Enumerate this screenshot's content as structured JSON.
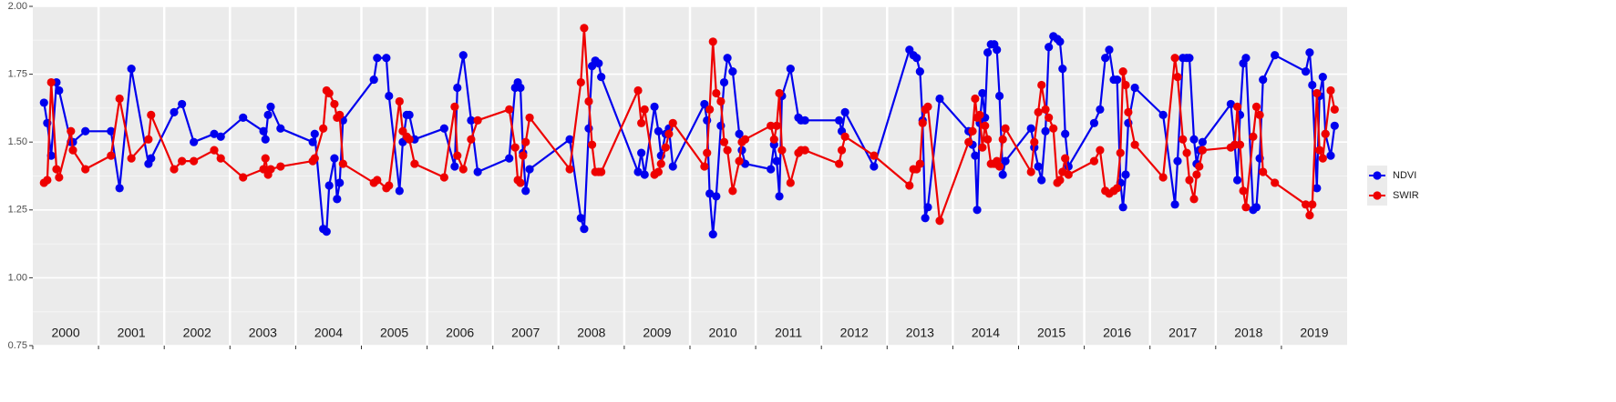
{
  "chart_data": {
    "type": "line",
    "x": [
      2000.17,
      2000.22,
      2000.28,
      2000.36,
      2000.4,
      2000.58,
      2000.61,
      2000.8,
      2001.19,
      2001.32,
      2001.5,
      2001.76,
      2001.8,
      2002.15,
      2002.27,
      2002.45,
      2002.76,
      2002.86,
      2003.2,
      2003.51,
      2003.54,
      2003.58,
      2003.62,
      2003.77,
      2004.26,
      2004.29,
      2004.42,
      2004.47,
      2004.51,
      2004.59,
      2004.63,
      2004.67,
      2004.72,
      2005.19,
      2005.24,
      2005.38,
      2005.42,
      2005.58,
      2005.63,
      2005.69,
      2005.73,
      2005.81,
      2006.26,
      2006.42,
      2006.46,
      2006.55,
      2006.67,
      2006.77,
      2007.25,
      2007.34,
      2007.38,
      2007.42,
      2007.46,
      2007.5,
      2007.56,
      2008.17,
      2008.34,
      2008.39,
      2008.46,
      2008.51,
      2008.56,
      2008.61,
      2008.65,
      2009.21,
      2009.26,
      2009.31,
      2009.46,
      2009.52,
      2009.56,
      2009.63,
      2009.68,
      2009.74,
      2010.22,
      2010.26,
      2010.3,
      2010.35,
      2010.4,
      2010.47,
      2010.52,
      2010.57,
      2010.65,
      2010.75,
      2010.79,
      2010.84,
      2011.23,
      2011.28,
      2011.32,
      2011.36,
      2011.4,
      2011.53,
      2011.65,
      2011.69,
      2011.75,
      2012.27,
      2012.31,
      2012.36,
      2012.8,
      2013.34,
      2013.4,
      2013.45,
      2013.5,
      2013.54,
      2013.58,
      2013.62,
      2013.8,
      2014.24,
      2014.3,
      2014.34,
      2014.37,
      2014.41,
      2014.45,
      2014.49,
      2014.53,
      2014.58,
      2014.63,
      2014.67,
      2014.71,
      2014.76,
      2014.8,
      2015.19,
      2015.24,
      2015.3,
      2015.35,
      2015.41,
      2015.46,
      2015.53,
      2015.59,
      2015.63,
      2015.67,
      2015.71,
      2015.76,
      2016.15,
      2016.24,
      2016.32,
      2016.38,
      2016.45,
      2016.5,
      2016.55,
      2016.59,
      2016.63,
      2016.67,
      2016.77,
      2017.2,
      2017.38,
      2017.42,
      2017.5,
      2017.56,
      2017.6,
      2017.67,
      2017.71,
      2017.75,
      2017.8,
      2018.23,
      2018.29,
      2018.33,
      2018.37,
      2018.42,
      2018.46,
      2018.57,
      2018.62,
      2018.67,
      2018.72,
      2018.9,
      2019.37,
      2019.43,
      2019.47,
      2019.54,
      2019.58,
      2019.63,
      2019.67,
      2019.75,
      2019.81
    ],
    "series": [
      {
        "name": "NDVI",
        "color": "#0000ee",
        "values": [
          1.645,
          1.57,
          1.45,
          1.72,
          1.69,
          1.5,
          1.5,
          1.54,
          1.54,
          1.33,
          1.77,
          1.42,
          1.44,
          1.61,
          1.64,
          1.5,
          1.53,
          1.52,
          1.59,
          1.54,
          1.51,
          1.6,
          1.63,
          1.55,
          1.5,
          1.53,
          1.18,
          1.17,
          1.34,
          1.44,
          1.29,
          1.35,
          1.58,
          1.73,
          1.81,
          1.81,
          1.67,
          1.32,
          1.5,
          1.6,
          1.6,
          1.51,
          1.55,
          1.41,
          1.7,
          1.82,
          1.58,
          1.39,
          1.44,
          1.7,
          1.72,
          1.7,
          1.46,
          1.32,
          1.4,
          1.51,
          1.22,
          1.18,
          1.55,
          1.78,
          1.8,
          1.79,
          1.74,
          1.39,
          1.46,
          1.38,
          1.63,
          1.54,
          1.45,
          1.53,
          1.55,
          1.41,
          1.64,
          1.58,
          1.31,
          1.16,
          1.3,
          1.56,
          1.72,
          1.81,
          1.76,
          1.53,
          1.47,
          1.42,
          1.4,
          1.49,
          1.43,
          1.3,
          1.67,
          1.77,
          1.59,
          1.58,
          1.58,
          1.58,
          1.54,
          1.61,
          1.41,
          1.84,
          1.82,
          1.81,
          1.76,
          1.58,
          1.22,
          1.26,
          1.66,
          1.54,
          1.49,
          1.45,
          1.25,
          1.57,
          1.68,
          1.59,
          1.83,
          1.86,
          1.86,
          1.84,
          1.67,
          1.38,
          1.43,
          1.55,
          1.48,
          1.41,
          1.36,
          1.54,
          1.85,
          1.89,
          1.88,
          1.87,
          1.77,
          1.53,
          1.41,
          1.57,
          1.62,
          1.81,
          1.84,
          1.73,
          1.73,
          1.35,
          1.26,
          1.38,
          1.57,
          1.7,
          1.6,
          1.27,
          1.43,
          1.81,
          1.81,
          1.81,
          1.51,
          1.42,
          1.47,
          1.5,
          1.64,
          1.49,
          1.36,
          1.6,
          1.79,
          1.81,
          1.25,
          1.26,
          1.44,
          1.73,
          1.82,
          1.76,
          1.83,
          1.71,
          1.33,
          1.67,
          1.74,
          1.53,
          1.45,
          1.56
        ]
      },
      {
        "name": "SWIR",
        "color": "#ee0000",
        "values": [
          1.35,
          1.36,
          1.72,
          1.4,
          1.37,
          1.54,
          1.47,
          1.4,
          1.45,
          1.66,
          1.44,
          1.51,
          1.6,
          1.4,
          1.43,
          1.43,
          1.47,
          1.44,
          1.37,
          1.4,
          1.44,
          1.38,
          1.4,
          1.41,
          1.43,
          1.44,
          1.55,
          1.69,
          1.68,
          1.64,
          1.59,
          1.6,
          1.42,
          1.35,
          1.36,
          1.33,
          1.34,
          1.65,
          1.54,
          1.52,
          1.51,
          1.42,
          1.37,
          1.63,
          1.45,
          1.4,
          1.51,
          1.58,
          1.62,
          1.48,
          1.36,
          1.35,
          1.45,
          1.5,
          1.59,
          1.4,
          1.72,
          1.92,
          1.65,
          1.49,
          1.39,
          1.39,
          1.39,
          1.69,
          1.57,
          1.62,
          1.38,
          1.39,
          1.42,
          1.48,
          1.53,
          1.57,
          1.41,
          1.46,
          1.62,
          1.87,
          1.68,
          1.65,
          1.5,
          1.47,
          1.32,
          1.43,
          1.5,
          1.51,
          1.56,
          1.51,
          1.56,
          1.68,
          1.47,
          1.35,
          1.46,
          1.47,
          1.47,
          1.42,
          1.47,
          1.52,
          1.45,
          1.34,
          1.4,
          1.4,
          1.42,
          1.57,
          1.62,
          1.63,
          1.21,
          1.5,
          1.54,
          1.66,
          1.59,
          1.6,
          1.48,
          1.56,
          1.51,
          1.42,
          1.42,
          1.43,
          1.41,
          1.51,
          1.55,
          1.39,
          1.5,
          1.61,
          1.71,
          1.62,
          1.59,
          1.55,
          1.35,
          1.36,
          1.39,
          1.44,
          1.38,
          1.43,
          1.47,
          1.32,
          1.31,
          1.32,
          1.33,
          1.46,
          1.76,
          1.71,
          1.61,
          1.49,
          1.37,
          1.81,
          1.74,
          1.51,
          1.46,
          1.36,
          1.29,
          1.38,
          1.41,
          1.47,
          1.48,
          1.49,
          1.63,
          1.49,
          1.32,
          1.26,
          1.52,
          1.63,
          1.6,
          1.39,
          1.35,
          1.27,
          1.23,
          1.27,
          1.68,
          1.47,
          1.44,
          1.53,
          1.69,
          1.62
        ]
      }
    ],
    "xlim": [
      2000,
      2020
    ],
    "xticks": [
      2000,
      2001,
      2002,
      2003,
      2004,
      2005,
      2006,
      2007,
      2008,
      2009,
      2010,
      2011,
      2012,
      2013,
      2014,
      2015,
      2016,
      2017,
      2018,
      2019
    ],
    "ylim": [
      0.75,
      2.0
    ],
    "yticks": [
      {
        "value": 0.75,
        "label": "0.75"
      },
      {
        "value": 1.0,
        "label": "1.00"
      },
      {
        "value": 1.25,
        "label": "1.25"
      },
      {
        "value": 1.5,
        "label": "1.50"
      },
      {
        "value": 1.75,
        "label": "1.75"
      },
      {
        "value": 2.0,
        "label": "2.00"
      }
    ],
    "grid": true,
    "legend": "right"
  }
}
